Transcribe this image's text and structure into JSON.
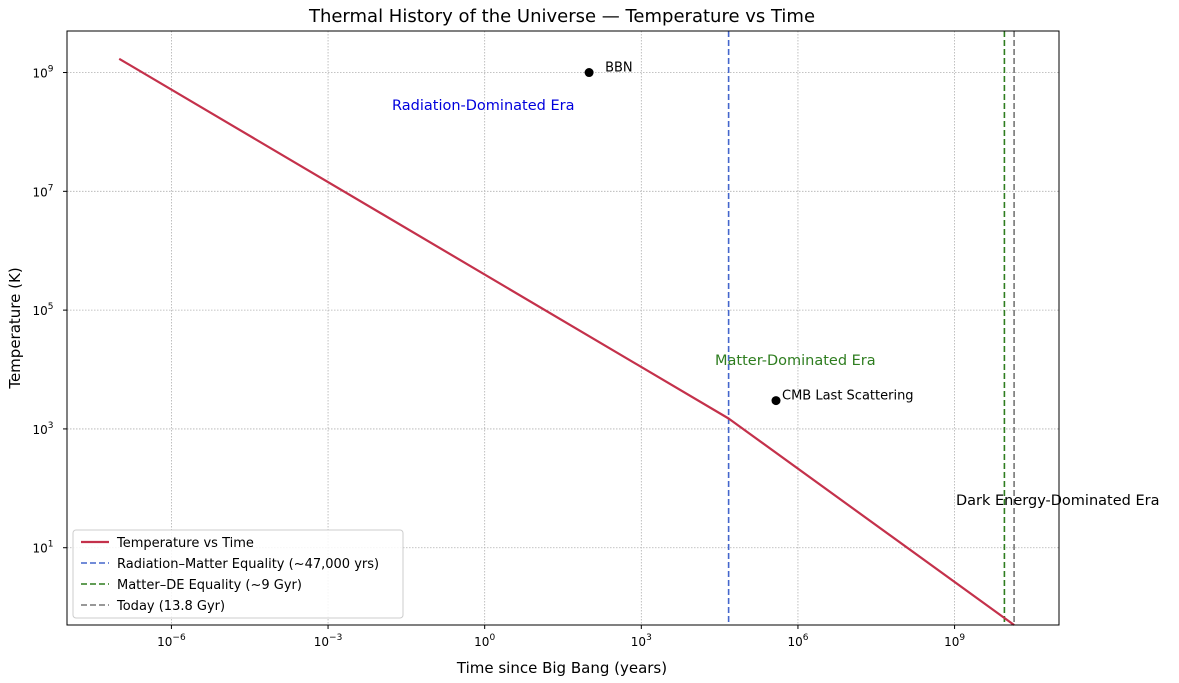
{
  "chart_data": {
    "type": "line",
    "title": "Thermal History of the Universe — Temperature vs Time",
    "xlabel": "Time since Big Bang (years)",
    "ylabel": "Temperature (K)",
    "xscale": "log",
    "yscale": "log",
    "xlim": [
      1e-08,
      100000000000.0
    ],
    "ylim": [
      0.5,
      5000000000.0
    ],
    "grid": true,
    "x_ticks": [
      {
        "value": 1e-06,
        "base": "10",
        "exp": "−6"
      },
      {
        "value": 0.001,
        "base": "10",
        "exp": "−3"
      },
      {
        "value": 1,
        "base": "10",
        "exp": "0"
      },
      {
        "value": 1000.0,
        "base": "10",
        "exp": "3"
      },
      {
        "value": 1000000.0,
        "base": "10",
        "exp": "6"
      },
      {
        "value": 1000000000.0,
        "base": "10",
        "exp": "9"
      }
    ],
    "y_ticks": [
      {
        "value": 10,
        "base": "10",
        "exp": "1"
      },
      {
        "value": 1000.0,
        "base": "10",
        "exp": "3"
      },
      {
        "value": 100000.0,
        "base": "10",
        "exp": "5"
      },
      {
        "value": 10000000.0,
        "base": "10",
        "exp": "7"
      },
      {
        "value": 1000000000.0,
        "base": "10",
        "exp": "9"
      }
    ],
    "series": [
      {
        "name": "Temperature vs Time",
        "color": "#c4314b",
        "x": [
          1e-07,
          47000,
          13800000000.0
        ],
        "y": [
          1700000000.0,
          1500,
          0.5
        ]
      }
    ],
    "vlines": [
      {
        "name": "Radiation–Matter Equality (~47,000 yrs)",
        "x": 47000,
        "color": "#4466cc"
      },
      {
        "name": "Matter–DE Equality (~9 Gyr)",
        "x": 9000000000.0,
        "color": "#2e7d1f"
      },
      {
        "name": "Today (13.8 Gyr)",
        "x": 13800000000.0,
        "color": "#777777"
      }
    ],
    "points": [
      {
        "label": "BBN",
        "x": 100,
        "y": 1000000000.0
      },
      {
        "label": "CMB Last Scattering",
        "x": 380000,
        "y": 3000
      }
    ],
    "era_labels": [
      {
        "text": "Radiation-Dominated Era",
        "color": "#0000dd",
        "x": 1,
        "y": 220000000.0
      },
      {
        "text": "Matter-Dominated Era",
        "color": "#2e7d1f",
        "x": 1000000.0,
        "y": 5000
      },
      {
        "text": "Dark Energy-Dominated Era",
        "color": "#000000",
        "x": 1000000000.0,
        "y": 15
      }
    ],
    "legend_position": "lower-left"
  }
}
